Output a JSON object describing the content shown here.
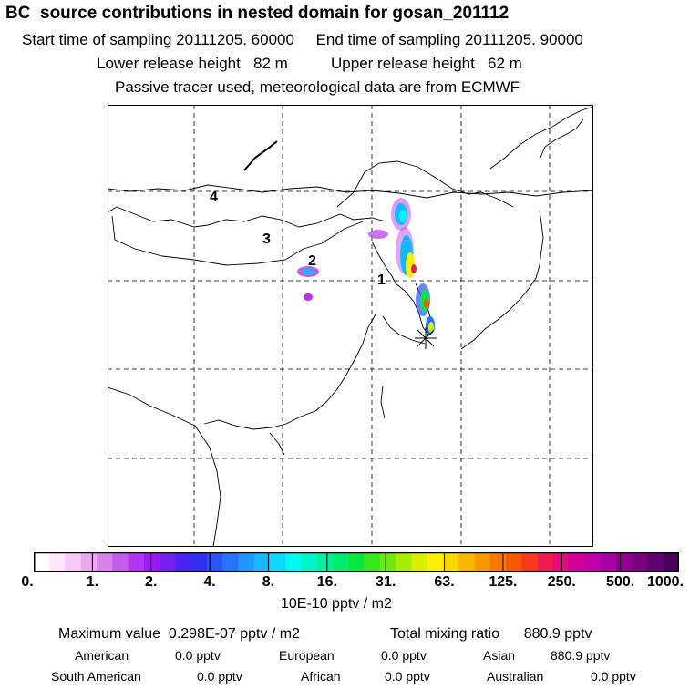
{
  "header": {
    "title": "BC  source contributions in nested domain for gosan_201112",
    "line1": "Start time of sampling 20111205. 60000     End time of sampling 20111205. 90000",
    "line2": "Lower release height   82 m          Upper release height   62 m",
    "line3": "Passive tracer used, meteorological data are from ECMWF"
  },
  "map": {
    "region_labels": [
      "4",
      "3",
      "2",
      "1"
    ],
    "receptor_marker": "asterisk-marker",
    "coastline_color": "#000000",
    "grid_style": "dashed"
  },
  "colorbar": {
    "ticks": [
      "0.",
      "1.",
      "2.",
      "4.",
      "8.",
      "16.",
      "31.",
      "63.",
      "125.",
      "250.",
      "500.",
      "1000."
    ],
    "colors": [
      "#ffffff",
      "#fbe6fb",
      "#f4c8f5",
      "#eaa8ef",
      "#d884ee",
      "#c45cf0",
      "#b034f0",
      "#9a1cf0",
      "#7420f0",
      "#4a24f0",
      "#3030f0",
      "#2c54f4",
      "#2874f8",
      "#1c98fa",
      "#18b8fc",
      "#10d8fc",
      "#00f8f0",
      "#00f4c8",
      "#00f09c",
      "#00ec70",
      "#08e840",
      "#38e81c",
      "#70e810",
      "#a8ec08",
      "#d8f000",
      "#f8f000",
      "#f8d800",
      "#f8b800",
      "#f89800",
      "#f87800",
      "#f85800",
      "#f83820",
      "#f01c50",
      "#e40c78",
      "#d40098",
      "#c000a8",
      "#a800a0",
      "#900090",
      "#780080",
      "#600070",
      "#480060"
    ],
    "unit_label": "10E-10 pptv / m2"
  },
  "summary": {
    "max_value": "Maximum value  0.298E-07 pptv / m2",
    "total_mixing": "Total mixing ratio      880.9 pptv",
    "rows": [
      [
        {
          "label": "American",
          "value": "0.0 pptv"
        },
        {
          "label": "European",
          "value": "0.0 pptv"
        },
        {
          "label": "Asian",
          "value": "880.9 pptv"
        }
      ],
      [
        {
          "label": "South American",
          "value": "0.0 pptv"
        },
        {
          "label": "African",
          "value": "0.0 pptv"
        },
        {
          "label": "Australian",
          "value": "0.0 pptv"
        }
      ]
    ]
  }
}
